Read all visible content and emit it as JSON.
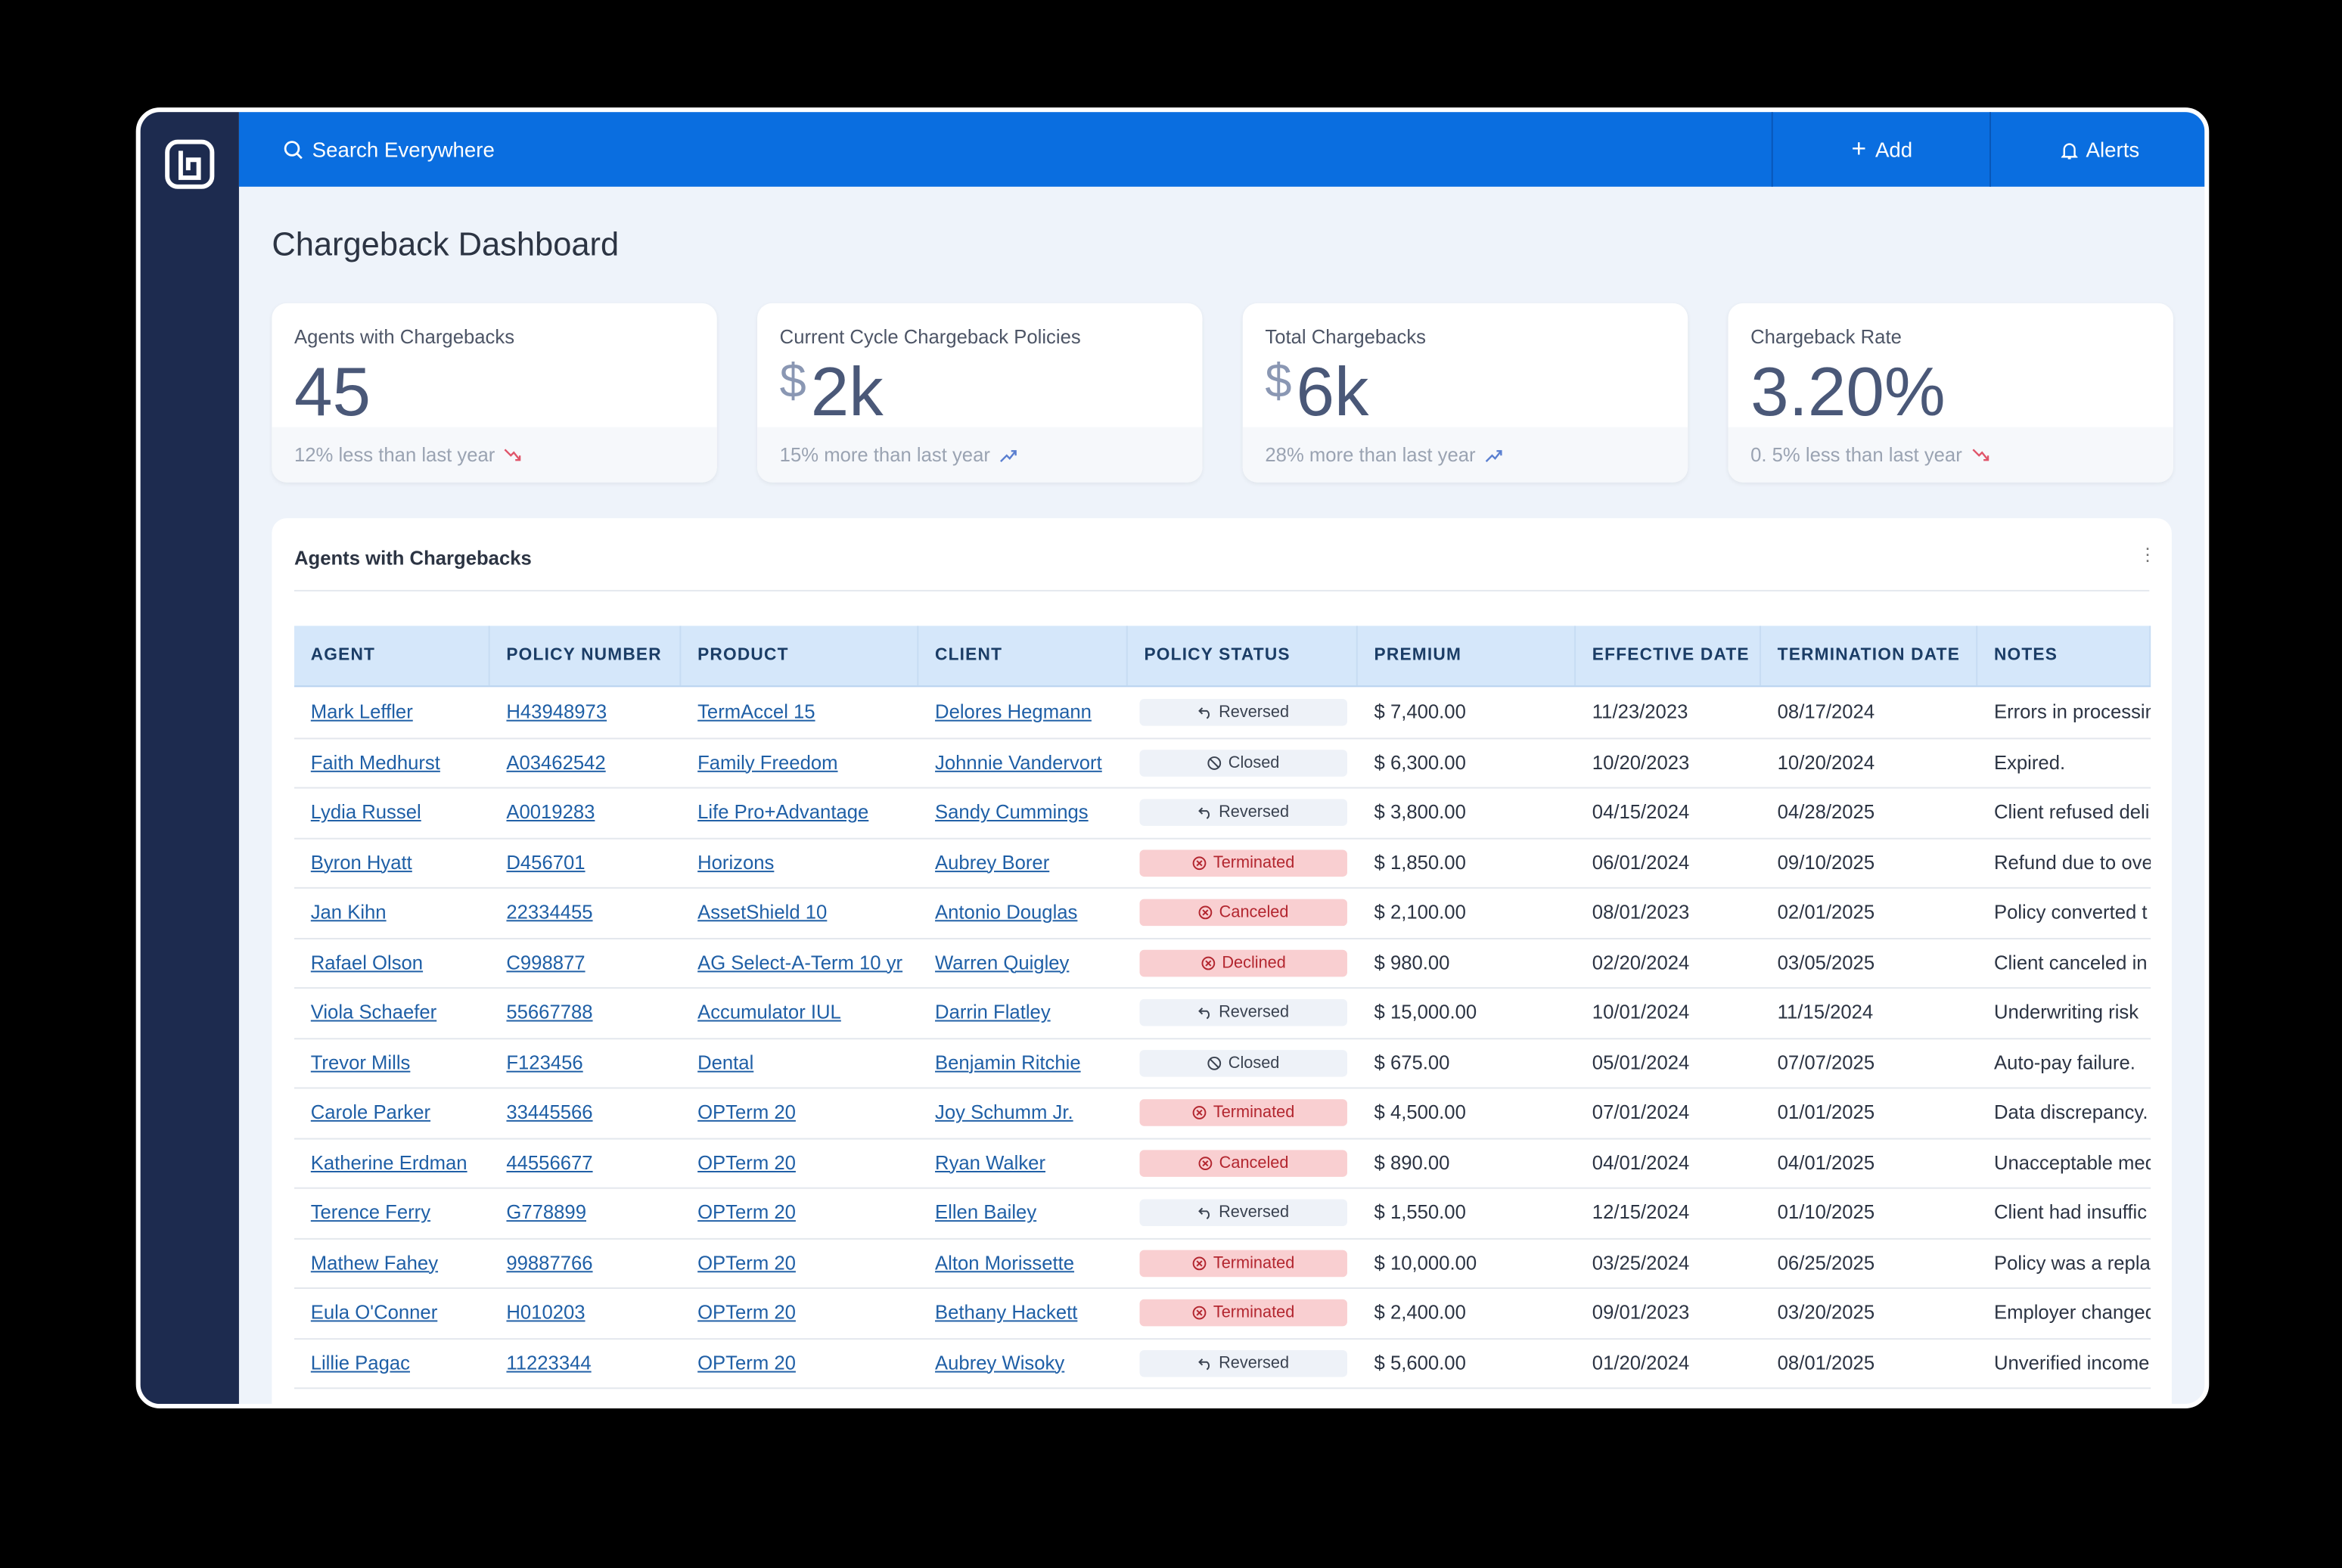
{
  "header": {
    "search": "Search Everywhere",
    "add": "Add",
    "alerts": "Alerts"
  },
  "page_title": "Chargeback Dashboard",
  "cards": [
    {
      "label": "Agents with Chargebacks",
      "value": "45",
      "trend": "12% less than last year",
      "trend_dir": "down"
    },
    {
      "label": "Current Cycle Chargeback Policies",
      "prefix": "$",
      "value": "2k",
      "trend": "15% more than last year",
      "trend_dir": "up"
    },
    {
      "label": "Total Chargebacks",
      "prefix": "$",
      "value": "6k",
      "trend": "28% more than last year",
      "trend_dir": "up"
    },
    {
      "label": "Chargeback Rate",
      "value": "3.20%",
      "trend": "0. 5% less than last year",
      "trend_dir": "down"
    }
  ],
  "table": {
    "title": "Agents with Chargebacks",
    "columns": [
      "AGENT",
      "POLICY NUMBER",
      "PRODUCT",
      "CLIENT",
      "POLICY STATUS",
      "PREMIUM",
      "EFFECTIVE DATE",
      "TERMINATION DATE",
      "NOTES"
    ],
    "rows": [
      [
        "Mark Leffler",
        "H43948973",
        "TermAccel 15",
        "Delores Hegmann",
        {
          "text": "Reversed",
          "color": "#eef2f8",
          "icon": "undo"
        },
        "$ 7,400.00",
        "11/23/2023",
        "08/17/2024",
        "Errors in processin"
      ],
      [
        "Faith Medhurst",
        "A03462542",
        "Family Freedom",
        "Johnnie Vandervort",
        {
          "text": "Closed",
          "color": "#eef2f8",
          "icon": "ban"
        },
        "$ 6,300.00",
        "10/20/2023",
        "10/20/2024",
        "Expired."
      ],
      [
        "Lydia Russel",
        "A0019283",
        "Life Pro+Advantage",
        "Sandy Cummings",
        {
          "text": "Reversed",
          "color": "#eef2f8",
          "icon": "undo"
        },
        "$ 3,800.00",
        "04/15/2024",
        "04/28/2025",
        "Client refused deli"
      ],
      [
        "Byron Hyatt",
        "D456701",
        "Horizons",
        "Aubrey Borer",
        {
          "text": "Terminated",
          "color": "#f9cfd1",
          "icon": "x"
        },
        "$ 1,850.00",
        "06/01/2024",
        "09/10/2025",
        "Refund due to ove"
      ],
      [
        "Jan Kihn",
        "22334455",
        "AssetShield 10",
        "Antonio Douglas",
        {
          "text": "Canceled",
          "color": "#f9cfd1",
          "icon": "x"
        },
        "$ 2,100.00",
        "08/01/2023",
        "02/01/2025",
        "Policy converted t"
      ],
      [
        "Rafael Olson",
        "C998877",
        "AG Select-A-Term 10 yr",
        "Warren Quigley",
        {
          "text": "Declined",
          "color": "#f9cfd1",
          "icon": "x"
        },
        "$ 980.00",
        "02/20/2024",
        "03/05/2025",
        "Client canceled in"
      ],
      [
        "Viola Schaefer",
        "55667788",
        "Accumulator IUL",
        "Darrin Flatley",
        {
          "text": "Reversed",
          "color": "#eef2f8",
          "icon": "undo"
        },
        "$ 15,000.00",
        "10/01/2024",
        "11/15/2024",
        "Underwriting risk"
      ],
      [
        "Trevor Mills",
        "F123456",
        "Dental",
        "Benjamin Ritchie",
        {
          "text": "Closed",
          "color": "#eef2f8",
          "icon": "ban"
        },
        "$ 675.00",
        "05/01/2024",
        "07/07/2025",
        "Auto-pay failure."
      ],
      [
        "Carole Parker",
        "33445566",
        "OPTerm 20",
        "Joy Schumm Jr.",
        {
          "text": "Terminated",
          "color": "#f9cfd1",
          "icon": "x"
        },
        "$ 4,500.00",
        "07/01/2024",
        "01/01/2025",
        "Data discrepancy."
      ],
      [
        "Katherine Erdman",
        "44556677",
        "OPTerm 20",
        "Ryan Walker",
        {
          "text": "Canceled",
          "color": "#f9cfd1",
          "icon": "x"
        },
        "$ 890.00",
        "04/01/2024",
        "04/01/2025",
        "Unacceptable med"
      ],
      [
        "Terence Ferry",
        "G778899",
        "OPTerm 20",
        "Ellen Bailey",
        {
          "text": "Reversed",
          "color": "#eef2f8",
          "icon": "undo"
        },
        "$ 1,550.00",
        "12/15/2024",
        "01/10/2025",
        "Client had insuffic"
      ],
      [
        "Mathew Fahey",
        "99887766",
        "OPTerm 20",
        "Alton Morissette",
        {
          "text": "Terminated",
          "color": "#f9cfd1",
          "icon": "x"
        },
        "$ 10,000.00",
        "03/25/2024",
        "06/25/2025",
        "Policy was a repla"
      ],
      [
        "Eula O'Conner",
        "H010203",
        "OPTerm 20",
        "Bethany Hackett",
        {
          "text": "Terminated",
          "color": "#f9cfd1",
          "icon": "x"
        },
        "$ 2,400.00",
        "09/01/2023",
        "03/20/2025",
        "Employer changed"
      ],
      [
        "Lillie Pagac",
        "11223344",
        "OPTerm 20",
        "Aubrey Wisoky",
        {
          "text": "Reversed",
          "color": "#eef2f8",
          "icon": "undo"
        },
        "$ 5,600.00",
        "01/20/2024",
        "08/01/2025",
        "Unverified income"
      ]
    ]
  }
}
